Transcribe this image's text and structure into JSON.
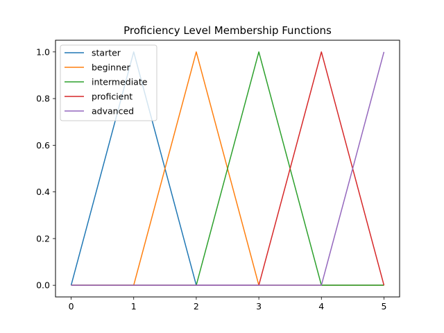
{
  "chart_data": {
    "type": "line",
    "title": "Proficiency Level Membership Functions",
    "xlabel": "",
    "ylabel": "",
    "xlim": [
      -0.25,
      5.25
    ],
    "ylim": [
      -0.05,
      1.05
    ],
    "xticks": [
      "0",
      "1",
      "2",
      "3",
      "4",
      "5"
    ],
    "yticks": [
      "0.0",
      "0.2",
      "0.4",
      "0.6",
      "0.8",
      "1.0"
    ],
    "grid": false,
    "legend_position": "top-left",
    "x": [
      0,
      1,
      2,
      3,
      4,
      5
    ],
    "series": [
      {
        "name": "starter",
        "color": "#1f77b4",
        "values": [
          0,
          1,
          0,
          0,
          0,
          0
        ]
      },
      {
        "name": "beginner",
        "color": "#ff7f0e",
        "values": [
          0,
          0,
          1,
          0,
          0,
          0
        ]
      },
      {
        "name": "intermediate",
        "color": "#2ca02c",
        "values": [
          0,
          0,
          0,
          1,
          0,
          0
        ]
      },
      {
        "name": "proficient",
        "color": "#d62728",
        "values": [
          0,
          0,
          0,
          0,
          1,
          0
        ]
      },
      {
        "name": "advanced",
        "color": "#9467bd",
        "values": [
          0,
          0,
          0,
          0,
          0,
          1
        ]
      }
    ]
  }
}
